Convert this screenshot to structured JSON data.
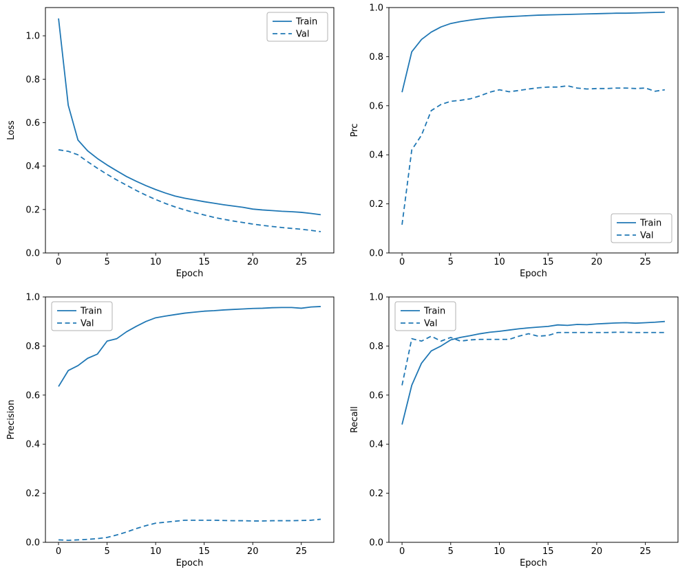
{
  "figure": {
    "background": "#ffffff",
    "accent_color": "#1f77b4",
    "spine_color": "#000000",
    "legend_border_color": "#b0b0b0"
  },
  "chart_data": [
    {
      "id": "loss",
      "type": "line",
      "title": "",
      "xlabel": "Epoch",
      "ylabel": "Loss",
      "xlim": [
        -1.35,
        28.35
      ],
      "ylim": [
        0,
        1.13
      ],
      "xticks": [
        0,
        5,
        10,
        15,
        20,
        25
      ],
      "yticks": [
        0.0,
        0.2,
        0.4,
        0.6,
        0.8,
        1.0
      ],
      "legend_position": "top-right",
      "grid": false,
      "x": [
        0,
        1,
        2,
        3,
        4,
        5,
        6,
        7,
        8,
        9,
        10,
        11,
        12,
        13,
        14,
        15,
        16,
        17,
        18,
        19,
        20,
        21,
        22,
        23,
        24,
        25,
        26,
        27
      ],
      "series": [
        {
          "name": "Train",
          "style": "solid",
          "values": [
            1.08,
            0.68,
            0.52,
            0.47,
            0.435,
            0.405,
            0.378,
            0.352,
            0.33,
            0.31,
            0.292,
            0.276,
            0.262,
            0.252,
            0.244,
            0.236,
            0.229,
            0.222,
            0.216,
            0.21,
            0.202,
            0.198,
            0.195,
            0.192,
            0.19,
            0.187,
            0.182,
            0.176
          ]
        },
        {
          "name": "Val",
          "style": "dashed",
          "values": [
            0.475,
            0.468,
            0.452,
            0.42,
            0.39,
            0.362,
            0.336,
            0.312,
            0.288,
            0.266,
            0.246,
            0.228,
            0.212,
            0.198,
            0.186,
            0.175,
            0.164,
            0.155,
            0.147,
            0.14,
            0.133,
            0.127,
            0.122,
            0.117,
            0.113,
            0.109,
            0.104,
            0.098
          ]
        }
      ]
    },
    {
      "id": "prc",
      "type": "line",
      "title": "",
      "xlabel": "Epoch",
      "ylabel": "Prc",
      "xlim": [
        -1.35,
        28.35
      ],
      "ylim": [
        0,
        1.0
      ],
      "xticks": [
        0,
        5,
        10,
        15,
        20,
        25
      ],
      "yticks": [
        0.0,
        0.2,
        0.4,
        0.6,
        0.8,
        1.0
      ],
      "legend_position": "bottom-right",
      "grid": false,
      "x": [
        0,
        1,
        2,
        3,
        4,
        5,
        6,
        7,
        8,
        9,
        10,
        11,
        12,
        13,
        14,
        15,
        16,
        17,
        18,
        19,
        20,
        21,
        22,
        23,
        24,
        25,
        26,
        27
      ],
      "series": [
        {
          "name": "Train",
          "style": "solid",
          "values": [
            0.655,
            0.82,
            0.87,
            0.9,
            0.921,
            0.935,
            0.943,
            0.949,
            0.954,
            0.958,
            0.961,
            0.963,
            0.965,
            0.967,
            0.969,
            0.97,
            0.971,
            0.972,
            0.973,
            0.974,
            0.975,
            0.976,
            0.977,
            0.977,
            0.978,
            0.979,
            0.98,
            0.981
          ]
        },
        {
          "name": "Val",
          "style": "dashed",
          "values": [
            0.115,
            0.42,
            0.48,
            0.58,
            0.605,
            0.618,
            0.622,
            0.628,
            0.64,
            0.655,
            0.665,
            0.657,
            0.662,
            0.668,
            0.673,
            0.676,
            0.676,
            0.681,
            0.672,
            0.668,
            0.67,
            0.67,
            0.672,
            0.672,
            0.67,
            0.672,
            0.659,
            0.665
          ]
        }
      ]
    },
    {
      "id": "precision",
      "type": "line",
      "title": "",
      "xlabel": "Epoch",
      "ylabel": "Precision",
      "xlim": [
        -1.35,
        28.35
      ],
      "ylim": [
        0,
        1.0
      ],
      "xticks": [
        0,
        5,
        10,
        15,
        20,
        25
      ],
      "yticks": [
        0.0,
        0.2,
        0.4,
        0.6,
        0.8,
        1.0
      ],
      "legend_position": "top-left",
      "grid": false,
      "x": [
        0,
        1,
        2,
        3,
        4,
        5,
        6,
        7,
        8,
        9,
        10,
        11,
        12,
        13,
        14,
        15,
        16,
        17,
        18,
        19,
        20,
        21,
        22,
        23,
        24,
        25,
        26,
        27
      ],
      "series": [
        {
          "name": "Train",
          "style": "solid",
          "values": [
            0.635,
            0.7,
            0.72,
            0.75,
            0.767,
            0.82,
            0.83,
            0.858,
            0.88,
            0.9,
            0.915,
            0.922,
            0.928,
            0.934,
            0.938,
            0.942,
            0.944,
            0.947,
            0.949,
            0.951,
            0.953,
            0.954,
            0.956,
            0.957,
            0.957,
            0.954,
            0.959,
            0.961
          ]
        },
        {
          "name": "Val",
          "style": "dashed",
          "values": [
            0.01,
            0.008,
            0.01,
            0.012,
            0.015,
            0.02,
            0.03,
            0.042,
            0.056,
            0.068,
            0.078,
            0.082,
            0.086,
            0.09,
            0.09,
            0.09,
            0.09,
            0.089,
            0.088,
            0.088,
            0.087,
            0.087,
            0.088,
            0.088,
            0.088,
            0.089,
            0.09,
            0.094
          ]
        }
      ]
    },
    {
      "id": "recall",
      "type": "line",
      "title": "",
      "xlabel": "Epoch",
      "ylabel": "Recall",
      "xlim": [
        -1.35,
        28.35
      ],
      "ylim": [
        0,
        1.0
      ],
      "xticks": [
        0,
        5,
        10,
        15,
        20,
        25
      ],
      "yticks": [
        0.0,
        0.2,
        0.4,
        0.6,
        0.8,
        1.0
      ],
      "legend_position": "top-left",
      "grid": false,
      "x": [
        0,
        1,
        2,
        3,
        4,
        5,
        6,
        7,
        8,
        9,
        10,
        11,
        12,
        13,
        14,
        15,
        16,
        17,
        18,
        19,
        20,
        21,
        22,
        23,
        24,
        25,
        26,
        27
      ],
      "series": [
        {
          "name": "Train",
          "style": "solid",
          "values": [
            0.48,
            0.64,
            0.73,
            0.78,
            0.8,
            0.825,
            0.835,
            0.842,
            0.85,
            0.856,
            0.86,
            0.865,
            0.87,
            0.874,
            0.877,
            0.88,
            0.886,
            0.884,
            0.888,
            0.887,
            0.89,
            0.892,
            0.894,
            0.895,
            0.893,
            0.895,
            0.897,
            0.9
          ]
        },
        {
          "name": "Val",
          "style": "dashed",
          "values": [
            0.64,
            0.83,
            0.82,
            0.84,
            0.82,
            0.835,
            0.82,
            0.825,
            0.827,
            0.827,
            0.827,
            0.827,
            0.84,
            0.85,
            0.84,
            0.843,
            0.855,
            0.855,
            0.855,
            0.855,
            0.855,
            0.855,
            0.856,
            0.856,
            0.855,
            0.855,
            0.855,
            0.855
          ]
        }
      ]
    }
  ]
}
